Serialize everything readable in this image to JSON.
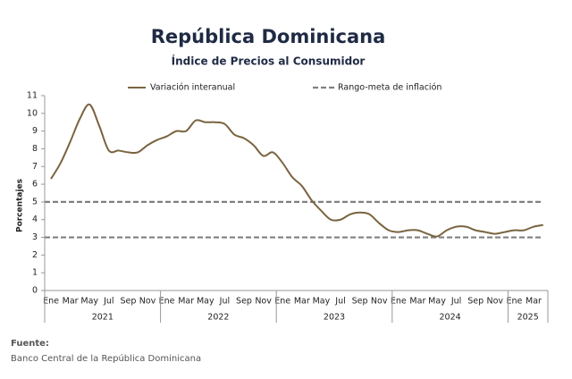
{
  "chart_data": {
    "type": "line",
    "title": "República Dominicana",
    "subtitle": "Índice de Precios al Consumidor",
    "ylabel": "Porcentajes",
    "categories": [
      "Ene",
      null,
      "Mar",
      null,
      "May",
      null,
      "Jul",
      null,
      "Sep",
      null,
      "Nov",
      null,
      "Ene",
      null,
      "Mar",
      null,
      "May",
      null,
      "Jul",
      null,
      "Sep",
      null,
      "Nov",
      null,
      "Ene",
      null,
      "Mar",
      null,
      "May",
      null,
      "Jul",
      null,
      "Sep",
      null,
      "Nov",
      null,
      "Ene",
      null,
      "Mar",
      null,
      "May",
      null,
      "Jul",
      null,
      "Sep",
      null,
      "Nov",
      null,
      "Ene",
      null,
      "Mar",
      null
    ],
    "years": [
      "2021",
      "2022",
      "2023",
      "2024",
      "2025"
    ],
    "series": [
      {
        "name": "Variación interanual",
        "color": "#7a6440",
        "values": [
          6.3,
          7.2,
          8.4,
          9.7,
          10.5,
          9.3,
          7.9,
          7.9,
          7.8,
          7.8,
          8.2,
          8.5,
          8.7,
          9.0,
          9.0,
          9.6,
          9.5,
          9.5,
          9.4,
          8.8,
          8.6,
          8.2,
          7.6,
          7.8,
          7.2,
          6.4,
          5.9,
          5.1,
          4.5,
          4.0,
          4.0,
          4.3,
          4.4,
          4.3,
          3.8,
          3.4,
          3.3,
          3.4,
          3.4,
          3.2,
          3.05,
          3.4,
          3.6,
          3.6,
          3.4,
          3.3,
          3.2,
          3.3,
          3.4,
          3.4,
          3.6,
          3.7
        ]
      }
    ],
    "target": {
      "name": "Rango-meta de inflación",
      "color": "#808080",
      "values": [
        3,
        5
      ]
    },
    "ylim": [
      0,
      11
    ],
    "yticks": [
      0,
      1,
      2,
      3,
      4,
      5,
      6,
      7,
      8,
      9,
      10,
      11
    ],
    "source_label": "Fuente:",
    "source": "Banco Central de la República Dominicana"
  }
}
